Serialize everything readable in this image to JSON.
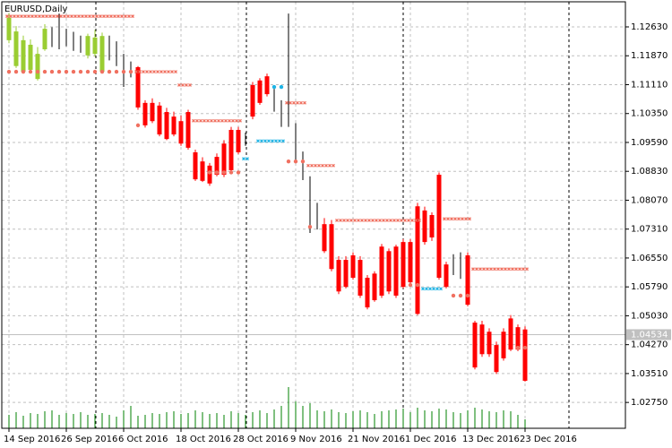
{
  "chart_data": {
    "type": "ohlc",
    "title": "EURUSD,Daily",
    "categories": [
      "14 Sep 2016",
      null,
      null,
      null,
      null,
      null,
      null,
      null,
      "26 Sep 2016",
      null,
      null,
      null,
      null,
      null,
      null,
      null,
      "6 Oct 2016",
      null,
      null,
      null,
      null,
      null,
      null,
      null,
      "18 Oct 2016",
      null,
      null,
      null,
      null,
      null,
      null,
      null,
      "28 Oct 2016",
      null,
      null,
      null,
      null,
      null,
      null,
      null,
      "9 Nov 2016",
      null,
      null,
      null,
      null,
      null,
      null,
      null,
      "21 Nov 2016",
      null,
      null,
      null,
      null,
      null,
      null,
      null,
      "1 Dec 2016",
      null,
      null,
      null,
      null,
      null,
      null,
      null,
      "13 Dec 2016",
      null,
      null,
      null,
      null,
      null,
      null,
      null,
      "23 Dec 2016"
    ],
    "open": [
      1.1228,
      1.116,
      1.1145,
      1.115,
      1.1126,
      1.1204,
      1.123,
      1.124,
      1.123,
      1.1218,
      1.121,
      1.1188,
      1.1192,
      1.1145,
      1.12,
      1.118,
      1.116,
      1.115,
      1.1157,
      1.1063,
      1.1063,
      1.1056,
      1.1039,
      1.1027,
      1.1015,
      1.1039,
      1.0933,
      1.0909,
      1.0898,
      1.0921,
      1.0956,
      1.0992,
      1.0992,
      1.096,
      1.111,
      1.1122,
      1.1133,
      1.109,
      1.106,
      1.103,
      1.1,
      1.092,
      1.086,
      1.077,
      1.0744,
      1.0744,
      1.065,
      1.065,
      1.0662,
      1.065,
      1.0603,
      1.0614,
      1.0685,
      1.0673,
      1.0685,
      1.0697,
      1.0697,
      1.0791,
      1.078,
      1.0768,
      1.0874,
      1.0638,
      1.064,
      1.065,
      1.0662,
      1.0485,
      1.048,
      1.0461,
      1.0426,
      1.0461,
      1.0496,
      1.0473,
      1.0467
    ],
    "high": [
      1.1299,
      1.1265,
      1.124,
      1.123,
      1.121,
      1.127,
      1.1262,
      1.1298,
      1.1258,
      1.125,
      1.124,
      1.1245,
      1.1255,
      1.1248,
      1.124,
      1.1225,
      1.1192,
      1.1172,
      1.116,
      1.107,
      1.1075,
      1.1065,
      1.105,
      1.104,
      1.103,
      1.1045,
      1.094,
      1.092,
      1.0905,
      1.093,
      1.0965,
      1.1,
      1.1,
      1.0985,
      1.1118,
      1.1128,
      1.114,
      1.11,
      1.107,
      1.1298,
      1.101,
      1.0935,
      1.087,
      1.08,
      1.076,
      1.0755,
      1.066,
      1.066,
      1.067,
      1.066,
      1.061,
      1.062,
      1.0692,
      1.068,
      1.069,
      1.0705,
      1.0705,
      1.08,
      1.079,
      1.0775,
      1.088,
      1.0645,
      1.0665,
      1.067,
      1.067,
      1.049,
      1.049,
      1.047,
      1.0435,
      1.047,
      1.0505,
      1.048,
      1.0475
    ],
    "low": [
      1.122,
      1.1155,
      1.114,
      1.1145,
      1.1122,
      1.12,
      1.121,
      1.1204,
      1.1212,
      1.12,
      1.1195,
      1.118,
      1.1185,
      1.114,
      1.1175,
      1.116,
      1.1105,
      1.113,
      1.1045,
      1.0998,
      1.101,
      1.0975,
      1.0965,
      1.0975,
      1.095,
      1.094,
      1.0858,
      1.0855,
      1.0845,
      1.087,
      1.0868,
      1.088,
      1.0928,
      1.095,
      1.102,
      1.1058,
      1.108,
      1.104,
      1.1,
      1.1,
      1.091,
      1.086,
      1.0721,
      1.073,
      1.0668,
      1.062,
      1.056,
      1.0575,
      1.0598,
      1.055,
      1.052,
      1.054,
      1.055,
      1.056,
      1.055,
      1.0575,
      1.0585,
      1.0505,
      1.069,
      1.07,
      1.0598,
      1.0575,
      1.061,
      1.06,
      1.0528,
      1.0362,
      1.0395,
      1.0395,
      1.035,
      1.0385,
      1.041,
      1.041,
      1.033
    ],
    "close": [
      1.1287,
      1.1251,
      1.1228,
      1.1216,
      1.1192,
      1.1258,
      1.1225,
      1.1235,
      1.1236,
      1.1222,
      1.1215,
      1.1239,
      1.1235,
      1.1239,
      1.1205,
      1.1175,
      1.115,
      1.1145,
      1.1051,
      1.1004,
      1.1015,
      1.098,
      1.0968,
      1.098,
      1.0956,
      1.0945,
      1.0862,
      1.0858,
      1.0851,
      1.0874,
      1.0874,
      1.0886,
      1.0933,
      1.0965,
      1.1027,
      1.1063,
      1.1086,
      1.106,
      1.103,
      1.102,
      1.092,
      1.088,
      1.0765,
      1.079,
      1.0673,
      1.0626,
      1.0567,
      1.0579,
      1.0603,
      1.0556,
      1.0525,
      1.0544,
      1.0556,
      1.0567,
      1.0556,
      1.0579,
      1.0591,
      1.0508,
      1.0697,
      1.0709,
      1.0603,
      1.0579,
      1.065,
      1.064,
      1.0532,
      1.0367,
      1.0402,
      1.0402,
      1.0355,
      1.0391,
      1.0414,
      1.0414,
      1.0332
    ],
    "bar_colors": [
      "#9acd32",
      "#9acd32",
      "#9acd32",
      "#9acd32",
      "#9acd32",
      "#9acd32",
      "#000000",
      "#000000",
      "#000000",
      "#000000",
      "#000000",
      "#9acd32",
      "#9acd32",
      "#9acd32",
      "#000000",
      "#000000",
      "#000000",
      "#000000",
      "#ff0000",
      "#ff0000",
      "#ff0000",
      "#ff0000",
      "#ff0000",
      "#ff0000",
      "#ff0000",
      "#ff0000",
      "#ff0000",
      "#ff0000",
      "#ff0000",
      "#ff0000",
      "#ff0000",
      "#ff0000",
      "#ff0000",
      "#000000",
      "#ff0000",
      "#ff0000",
      "#ff0000",
      "#000000",
      "#000000",
      "#000000",
      "#000000",
      "#000000",
      "#000000",
      "#000000",
      "#ff0000",
      "#ff0000",
      "#ff0000",
      "#ff0000",
      "#ff0000",
      "#ff0000",
      "#ff0000",
      "#ff0000",
      "#ff0000",
      "#ff0000",
      "#ff0000",
      "#ff0000",
      "#ff0000",
      "#ff0000",
      "#ff0000",
      "#ff0000",
      "#ff0000",
      "#ff0000",
      "#000000",
      "#000000",
      "#ff0000",
      "#ff0000",
      "#ff0000",
      "#ff0000",
      "#ff0000",
      "#ff0000",
      "#ff0000",
      "#ff0000",
      "#ff0000"
    ],
    "volume": [
      150,
      180,
      140,
      170,
      160,
      190,
      200,
      150,
      170,
      160,
      180,
      150,
      160,
      170,
      150,
      130,
      200,
      250,
      140,
      150,
      170,
      160,
      180,
      190,
      160,
      170,
      200,
      180,
      160,
      170,
      150,
      190,
      170,
      150,
      180,
      200,
      170,
      210,
      250,
      460,
      300,
      250,
      280,
      200,
      190,
      210,
      180,
      170,
      190,
      200,
      180,
      160,
      190,
      200,
      210,
      220,
      180,
      230,
      200,
      190,
      220,
      210,
      180,
      170,
      200,
      230,
      210,
      190,
      180,
      200,
      190,
      150,
      100
    ],
    "volume_color": "#008000",
    "indicators": [
      {
        "marker": "cross",
        "color": "#f07060",
        "values": [
          1.1291,
          1.1291,
          1.1291,
          1.1291,
          1.1291,
          1.1291,
          1.1291,
          1.1291,
          1.1291,
          1.1291,
          1.1291,
          1.1291,
          1.1291,
          1.1291,
          1.1291,
          1.1291,
          1.1291,
          1.1291,
          1.1145,
          1.1145,
          1.1145,
          1.1145,
          1.1145,
          1.1145,
          1.111,
          1.111,
          1.1016,
          1.1016,
          1.1016,
          1.1016,
          1.1016,
          1.1016,
          1.1016,
          null,
          null,
          null,
          null,
          null,
          null,
          1.1063,
          1.1063,
          1.1063,
          1.0898,
          1.0898,
          1.0898,
          1.0898,
          1.0754,
          1.0754,
          1.0754,
          1.0754,
          1.0754,
          1.0754,
          1.0754,
          1.0754,
          1.0754,
          1.0754,
          1.0754,
          1.0754,
          null,
          null,
          null,
          1.0758,
          1.0758,
          1.0758,
          1.0758,
          1.0626,
          1.0626,
          1.0626,
          1.0626,
          1.0626,
          1.0626,
          1.0626,
          1.0626
        ]
      },
      {
        "marker": "cross",
        "color": "#1eb4e6",
        "values": [
          null,
          null,
          null,
          null,
          null,
          null,
          null,
          null,
          null,
          null,
          null,
          null,
          null,
          null,
          null,
          null,
          null,
          null,
          null,
          null,
          null,
          null,
          null,
          null,
          null,
          null,
          null,
          null,
          null,
          null,
          null,
          null,
          null,
          1.0916,
          null,
          1.0963,
          1.0963,
          1.0963,
          1.0963,
          null,
          null,
          null,
          null,
          null,
          null,
          null,
          null,
          null,
          null,
          null,
          null,
          null,
          null,
          null,
          null,
          null,
          null,
          null,
          1.0574,
          1.0574,
          1.0574,
          null,
          null,
          null,
          null,
          null,
          null,
          null,
          null,
          null,
          null,
          null,
          null
        ]
      },
      {
        "marker": "dot",
        "color": "#f07060",
        "values": [
          1.1145,
          1.1145,
          1.1145,
          1.1145,
          1.1145,
          1.1145,
          1.1145,
          1.1145,
          1.1145,
          1.1145,
          1.1145,
          1.1145,
          1.1145,
          1.1145,
          1.1145,
          1.1145,
          1.1145,
          1.1145,
          1.1004,
          null,
          null,
          null,
          null,
          null,
          null,
          null,
          null,
          null,
          1.088,
          1.088,
          1.088,
          1.088,
          1.088,
          null,
          null,
          null,
          null,
          null,
          null,
          1.0909,
          1.0909,
          1.0909,
          1.0737,
          null,
          null,
          null,
          null,
          null,
          null,
          null,
          null,
          null,
          null,
          null,
          null,
          null,
          1.0584,
          1.0584,
          null,
          null,
          null,
          null,
          1.0556,
          1.0556,
          1.0556,
          null,
          null,
          null,
          null,
          null,
          null,
          1.0419,
          1.0419
        ]
      },
      {
        "marker": "dot",
        "color": "#1eb4e6",
        "values": [
          null,
          null,
          null,
          null,
          null,
          null,
          null,
          null,
          null,
          null,
          null,
          null,
          null,
          null,
          null,
          null,
          null,
          null,
          null,
          null,
          null,
          null,
          null,
          null,
          null,
          null,
          null,
          null,
          null,
          null,
          null,
          null,
          null,
          null,
          null,
          null,
          null,
          1.1105,
          1.1105,
          null,
          null,
          null,
          null,
          null,
          null,
          null,
          null,
          null,
          null,
          null,
          null,
          null,
          null,
          null,
          null,
          null,
          null,
          null,
          null,
          null,
          null,
          null,
          null,
          null,
          null,
          null,
          null,
          null,
          null,
          null,
          null,
          null,
          null
        ]
      }
    ],
    "last_price": 1.04534,
    "ylim": [
      1.0207,
      1.1329
    ],
    "yticks": [
      {
        "value": 1.1263,
        "label": "1.12630"
      },
      {
        "value": 1.1187,
        "label": "1.11870"
      },
      {
        "value": 1.1111,
        "label": "1.11110"
      },
      {
        "value": 1.1035,
        "label": "1.10350"
      },
      {
        "value": 1.0959,
        "label": "1.09590"
      },
      {
        "value": 1.0883,
        "label": "1.08830"
      },
      {
        "value": 1.0807,
        "label": "1.08070"
      },
      {
        "value": 1.0731,
        "label": "1.07310"
      },
      {
        "value": 1.0655,
        "label": "1.06550"
      },
      {
        "value": 1.0579,
        "label": "1.05790"
      },
      {
        "value": 1.0503,
        "label": "1.05030"
      },
      {
        "value": 1.0427,
        "label": "1.04270"
      },
      {
        "value": 1.0351,
        "label": "1.03510"
      },
      {
        "value": 1.0275,
        "label": "1.02750"
      }
    ],
    "grid": true
  }
}
